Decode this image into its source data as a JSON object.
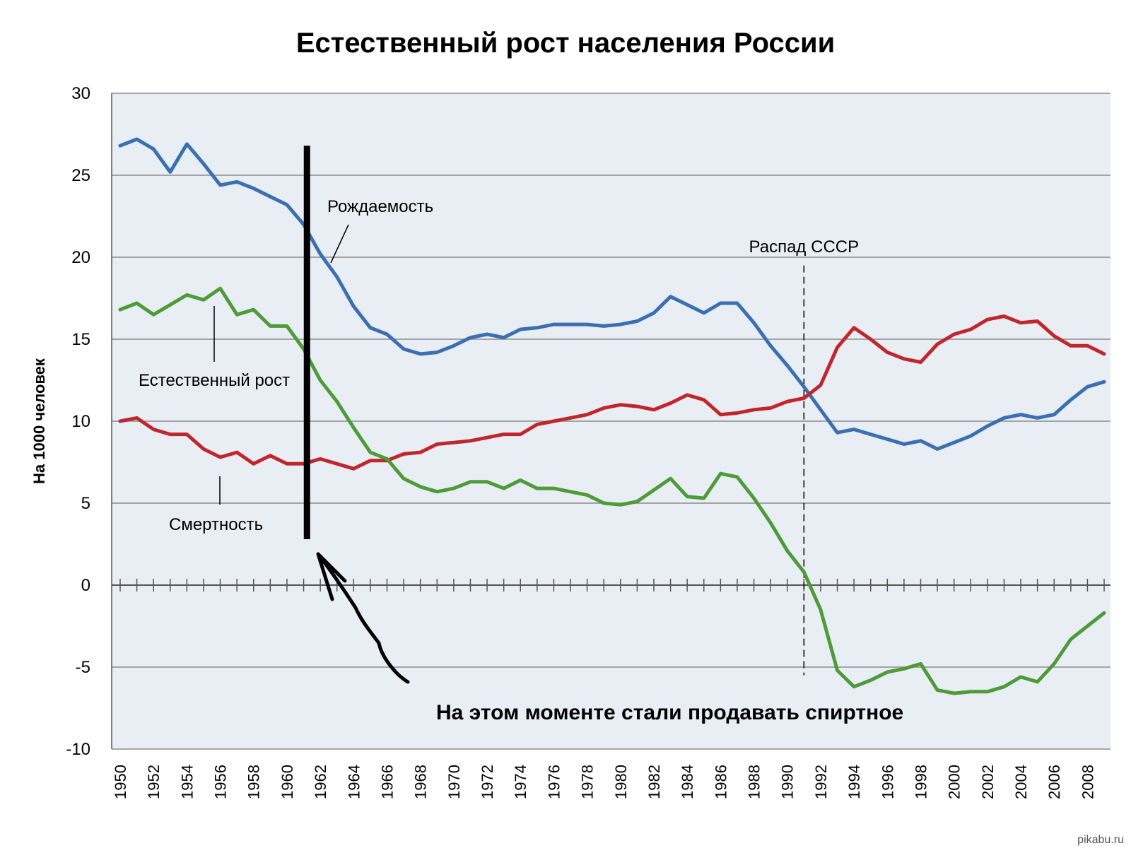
{
  "chart_data": {
    "type": "line",
    "title": "Естественный рост населения России",
    "ylabel": "На 1000 человек",
    "xlabel": "",
    "ylim": [
      -10,
      30
    ],
    "yticks": [
      "30",
      "25",
      "20",
      "15",
      "10",
      "5",
      "0",
      "-5",
      "-10"
    ],
    "x": [
      1950,
      1951,
      1952,
      1953,
      1954,
      1955,
      1956,
      1957,
      1958,
      1959,
      1960,
      1961,
      1962,
      1963,
      1964,
      1965,
      1966,
      1967,
      1968,
      1969,
      1970,
      1971,
      1972,
      1973,
      1974,
      1975,
      1976,
      1977,
      1978,
      1979,
      1980,
      1981,
      1982,
      1983,
      1984,
      1985,
      1986,
      1987,
      1988,
      1989,
      1990,
      1991,
      1992,
      1993,
      1994,
      1995,
      1996,
      1997,
      1998,
      1999,
      2000,
      2001,
      2002,
      2003,
      2004,
      2005,
      2006,
      2007,
      2008,
      2009
    ],
    "xtick_labels": [
      "1950",
      "1952",
      "1954",
      "1956",
      "1958",
      "1960",
      "1962",
      "1964",
      "1966",
      "1968",
      "1970",
      "1972",
      "1974",
      "1976",
      "1978",
      "1980",
      "1982",
      "1984",
      "1986",
      "1988",
      "1990",
      "1992",
      "1994",
      "1996",
      "1998",
      "2000",
      "2002",
      "2004",
      "2006",
      "2008"
    ],
    "grid": true,
    "series": [
      {
        "name": "Рождаемость",
        "color": "#3a6fb0",
        "values": [
          26.8,
          27.2,
          26.6,
          25.2,
          26.9,
          25.7,
          24.4,
          24.6,
          24.2,
          23.7,
          23.2,
          22.0,
          20.2,
          18.8,
          17.0,
          15.7,
          15.3,
          14.4,
          14.1,
          14.2,
          14.6,
          15.1,
          15.3,
          15.1,
          15.6,
          15.7,
          15.9,
          15.9,
          15.9,
          15.8,
          15.9,
          16.1,
          16.6,
          17.6,
          17.1,
          16.6,
          17.2,
          17.2,
          16.0,
          14.6,
          13.4,
          12.1,
          10.7,
          9.3,
          9.5,
          9.2,
          8.9,
          8.6,
          8.8,
          8.3,
          8.7,
          9.1,
          9.7,
          10.2,
          10.4,
          10.2,
          10.4,
          11.3,
          12.1,
          12.4
        ]
      },
      {
        "name": "Смертность",
        "color": "#c0272d",
        "values": [
          10.0,
          10.2,
          9.5,
          9.2,
          9.2,
          8.3,
          7.8,
          8.1,
          7.4,
          7.9,
          7.4,
          7.4,
          7.7,
          7.4,
          7.1,
          7.6,
          7.6,
          8.0,
          8.1,
          8.6,
          8.7,
          8.8,
          9.0,
          9.2,
          9.2,
          9.8,
          10.0,
          10.2,
          10.4,
          10.8,
          11.0,
          10.9,
          10.7,
          11.1,
          11.6,
          11.3,
          10.4,
          10.5,
          10.7,
          10.8,
          11.2,
          11.4,
          12.2,
          14.5,
          15.7,
          15.0,
          14.2,
          13.8,
          13.6,
          14.7,
          15.3,
          15.6,
          16.2,
          16.4,
          16.0,
          16.1,
          15.2,
          14.6,
          14.6,
          14.1
        ]
      },
      {
        "name": "Естественный рост",
        "color": "#4e9b3a",
        "values": [
          16.8,
          17.2,
          16.5,
          17.1,
          17.7,
          17.4,
          18.1,
          16.5,
          16.8,
          15.8,
          15.8,
          14.4,
          12.5,
          11.2,
          9.6,
          8.1,
          7.7,
          6.5,
          6.0,
          5.7,
          5.9,
          6.3,
          6.3,
          5.9,
          6.4,
          5.9,
          5.9,
          5.7,
          5.5,
          5.0,
          4.9,
          5.1,
          5.8,
          6.5,
          5.4,
          5.3,
          6.8,
          6.6,
          5.3,
          3.8,
          2.1,
          0.8,
          -1.5,
          -5.2,
          -6.2,
          -5.8,
          -5.3,
          -5.1,
          -4.8,
          -6.4,
          -6.6,
          -6.5,
          -6.5,
          -6.2,
          -5.6,
          -5.9,
          -4.8,
          -3.3,
          -2.5,
          -1.7
        ]
      }
    ],
    "annotations": {
      "birth_label": "Рождаемость",
      "death_label": "Смертность",
      "growth_label": "Естественный рост",
      "ussr_label": "Распад СССР",
      "ussr_year": 1991,
      "marker_year": 1961.2,
      "note": "На этом моменте стали продавать спиртное"
    }
  },
  "watermark": "pikabu.ru"
}
